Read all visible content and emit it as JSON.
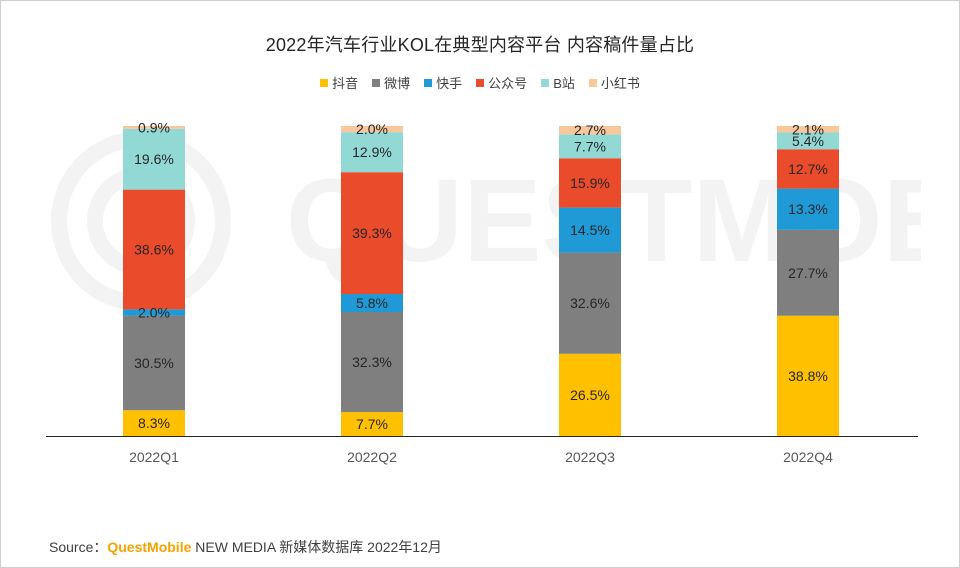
{
  "title": "2022年汽车行业KOL在典型内容平台 内容稿件量占比",
  "source": {
    "prefix": "Source：",
    "brand": "QuestMobile",
    "rest": " NEW MEDIA 新媒体数据库 2022年12月"
  },
  "watermark_text": "QUESTMOBILE",
  "chart_data": {
    "type": "bar",
    "stacked": true,
    "percent_stacked": true,
    "categories": [
      "2022Q1",
      "2022Q2",
      "2022Q3",
      "2022Q4"
    ],
    "series": [
      {
        "name": "抖音",
        "color": "#ffc000",
        "values": [
          8.3,
          7.7,
          26.5,
          38.8
        ],
        "labels": [
          "8.3%",
          "7.7%",
          "26.5%",
          "38.8%"
        ]
      },
      {
        "name": "微博",
        "color": "#7f7f7f",
        "values": [
          30.5,
          32.3,
          32.6,
          27.7
        ],
        "labels": [
          "30.5%",
          "32.3%",
          "32.6%",
          "27.7%"
        ]
      },
      {
        "name": "快手",
        "color": "#1f9ad6",
        "values": [
          2.0,
          5.8,
          14.5,
          13.3
        ],
        "labels": [
          "2.0%",
          "5.8%",
          "14.5%",
          "13.3%"
        ]
      },
      {
        "name": "公众号",
        "color": "#ea4b2a",
        "values": [
          38.6,
          39.3,
          15.9,
          12.7
        ],
        "labels": [
          "38.6%",
          "39.3%",
          "15.9%",
          "12.7%"
        ]
      },
      {
        "name": "B站",
        "color": "#92d9d6",
        "values": [
          19.6,
          12.9,
          7.7,
          5.4
        ],
        "labels": [
          "19.6%",
          "12.9%",
          "7.7%",
          "5.4%"
        ]
      },
      {
        "name": "小红书",
        "color": "#f8c79c",
        "values": [
          0.9,
          2.0,
          2.7,
          2.1
        ],
        "labels": [
          "0.9%",
          "2.0%",
          "2.7%",
          "2.1%"
        ]
      }
    ],
    "ylim": [
      0,
      100
    ],
    "legend": "top",
    "grid": false
  }
}
